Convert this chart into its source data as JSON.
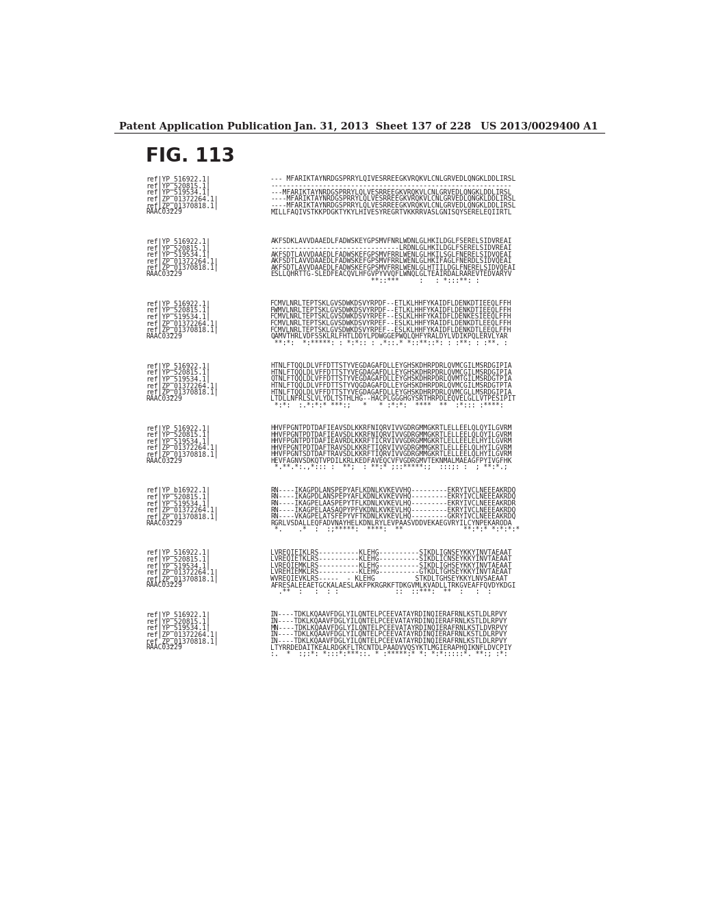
{
  "header_left": "Patent Application Publication",
  "header_middle": "Jan. 31, 2013  Sheet 137 of 228",
  "header_right": "US 2013/0029400 A1",
  "fig_label": "FIG. 113",
  "background_color": "#ffffff",
  "text_color": "#231f20",
  "blocks": [
    {
      "lines": [
        [
          "ref|YP_516922.1|",
          "--- MFARIKTAYNRDGSPRRYLQIVESRREEGKVRQKVLCNLGRVEDLQNGKLDDLIRSL"
        ],
        [
          "ref|YP_520815.1|",
          "------------------------------------------------------------"
        ],
        [
          "ref|YP_519534.1|",
          "---MFARIKTAYNRDGSPRRYLQLVESRREEGKVRQKVLCNLGRVEDLQNGKLDDLIRSL"
        ],
        [
          "ref|ZP_01372264.1|",
          "----MFARIKTAYNRDGSPRRYLQLVESRREEGKVRQKVLCNLGRVEDLQNGKLDDLIRSL"
        ],
        [
          "ref|ZP_01370818.1|",
          "----MFARIKTAYNRDGSPRRYLQLVESRREEGKVRQKVLCNLGRVEDLQNGKLDDLIRSL"
        ],
        [
          "RAAC03229",
          "MILLFAQIVSTKKPDGKTYKYLHIVESYREGRTVKKRRVASLGNISQYSERELEQIIRTL"
        ]
      ]
    },
    {
      "lines": [
        [
          "ref|YP_516922.1|",
          "AKFSDKLAVVDAAEDLFADWSKEYGPSMVFNRLWDNLGLHKILDGLFSERELSIDVREAI"
        ],
        [
          "ref|YP_520815.1|",
          "--------------------------------LRDNLGLHKILDGLFSERELSIDVREAI"
        ],
        [
          "ref|YP_519534.1|",
          "AKFSDTLAVVDAAEDLFADWSKEFGPSMVFRRLWENLGLHKILSGLFNERELSIDVQEAI"
        ],
        [
          "ref|ZP_01372264.1|",
          "AKFSDTLAVVDAAEDLFADWSKEFGPSMVFRRLWENLGLHKIFAGLFNERDLSIDVQEAI"
        ],
        [
          "ref|ZP_01370818.1|",
          "AKFSDTLAVVDAAEDLFADWSKEFGPSMVFRRLWENLGLHTIILDGLFNERELSIDVQEAI"
        ],
        [
          "RAAC03229",
          "ESLLQHRTTG-SLEDFEACQVLHFGVPYVVQFLWNQLGLTEAIRDALRAREVTEDVARYV"
        ],
        [
          "",
          "                         **::***     :   : *:::**: :"
        ]
      ]
    },
    {
      "lines": [
        [
          "ref|YP_516922.1|",
          "FCMVLNRLTEPTSKLGVSDWKDSVYRPDF--ETLKLHHFYKAIDFLDENKDTIEEQLFFH"
        ],
        [
          "ref|YP_520815.1|",
          "FWMVLNRLTEPTSKLGVSDWKDSVYRPDF--ETLKLHHFYKAIDFLDENKDTIEEQLFFH"
        ],
        [
          "ref|YP_519534.1|",
          "FCMVLNRLTEPTSKLGVSDWKDSVYRPEF--ESLKLHHFYKAIDFLDENKESIEEQLFFH"
        ],
        [
          "ref|ZP_01372264.1|",
          "FCMVLNRLTEPTSKLGVSDWKDSVYRPEF--ESLKLHHFYRAIDFLDENKDTLEEQLFFH"
        ],
        [
          "ref|ZP_01370818.1|",
          "FCMVLNRLTEPTSKLGVSDWKDSVYRPEF--ESLKLHHFYKAIDFLDENKDTLEEQLFFH"
        ],
        [
          "RAAC03229",
          "QAMVTHRLVDFSSKLRLFHTLDDYLPDWGGEPWQLQHFYRALDYLVDIKPQLERVLYAR"
        ],
        [
          "",
          " **:*:  *:*****: : *:*:: : .*::.* *::**::*: : :**: : :**. :"
        ]
      ]
    },
    {
      "lines": [
        [
          "ref|YP_516922.1|",
          "HTNLFTQQLDLVFFDTTSTYVEGDAGAFDLLEYGHSKDHRPDRLQVMCGILMSRDGIPIA"
        ],
        [
          "ref|YP_520815.1|",
          "HTNLFTQQLDLVFFDTTSTYVEGDAGAFDLLEYGHSKDHRPDRLQVMCGILMSRDGIPIA"
        ],
        [
          "ref|YP_519534.1|",
          "QTNLFTQQLDLVFFDTTSTYVEGDAGAFDLLEYGHSKDHRPDRLQVMTGILMSRDGTPIA"
        ],
        [
          "ref|ZP_01372264.1|",
          "HTNLFTQQLDLVFFDTTSTYVQGDAGAFDLLEYGHSKDHRPDRLQVMCGILMSRDGTPTA"
        ],
        [
          "ref|ZP_01370818.1|",
          "HTNLFTQQLDLVFFDTTSTYVEGDAGAFDLLEYGHSKDHRPDRLQVMCGLLMSRDGIPIA"
        ],
        [
          "RAAC03229",
          "LTDLLNFRLSLVLYDLTSTHLHG--HACPLGGGHGYSRTHRPDLEQVELGLLVTPESIPIT"
        ],
        [
          "",
          " *:*:  :.*:*:* ***:;   *   * :*:*:  ****  **  :*::: :****:"
        ]
      ]
    },
    {
      "lines": [
        [
          "ref|YP_516922.1|",
          "HHVFPGNTPDTDAFIEAVSDLKKRFNIQRVIVVGDRGMMGKRTLELLEELQLQYILGVRM"
        ],
        [
          "ref|YP_520815.1|",
          "HHVFPGNTPDTDAFIEAVSDLKKRFNIQRVIVVGDRGMMGKRTLELLEELQLQYILGVRM"
        ],
        [
          "ref|YP_519534.1|",
          "HHVFPGNTPDTDAFIEAVRDLKKRFTICRVIVVGDRGMMGKRTLELLEELELHYILGVRM"
        ],
        [
          "ref|ZP_01372264.1|",
          "HHVFPGNTPDTDAFTRAVSDLKKRFTIQRVIVVGDRGMMGKRTLELLEELQLHYILGVRM"
        ],
        [
          "ref|ZP_01370818.1|",
          "HHVFPGNTSDTDAFTRAVSDLKKRFTIQRVIVVGDRGMMGKRTLELLEELQLHYILGVRM"
        ],
        [
          "RAAC03229",
          "HEVFAGNVSDKQTVPDILKRLKEDFAVEQCVFVGDRGMVTEKNMALMAEAGFPYIVGFHK"
        ],
        [
          "",
          " *.**.*:.,*::: :  **;  : **:* ;::*****:;  :::;: :  ; **:*.;"
        ]
      ]
    },
    {
      "lines": [
        [
          "ref|YP_b16922.1|",
          "RN----IKAGPDLANSPEPYAFLKDNLKVKEVVHQ---------EKRYIVCLNEEEAKRDQ"
        ],
        [
          "ref|YP_520815.1|",
          "RN----IKAGPDLANSPEPYAFLKDNLKVKEVVHQ---------EKRYIVCLNEEEAKRDQ"
        ],
        [
          "ref|YP_519534.1|",
          "RN----IKAGPELAASPEPYTFLKDNLKVKEVLHQ---------EKRYIVCLNEEEAKRDR"
        ],
        [
          "ref|ZP_01372264.1|",
          "RN----IKAGPELAASAQPYPFVKDNLKVKEVLHQ---------EKRYIVCLNEEEAKRDQ"
        ],
        [
          "ref|ZP_01370818.1|",
          "RN----VKAGPELATSFEPYVFTKDNLKVKEVLHQ---------GKRYIVCLNEEEAKRDQ"
        ],
        [
          "RAAC03229",
          "RGRLVSDALLEQFADVNAYHELKDNLRYLEVPAASVDDVEKAEGVRYILCYNPEKARODA"
        ],
        [
          "",
          " *.    .*  :  :;*****:  ****:  **               **:*:* *:*:*:*"
        ]
      ]
    },
    {
      "lines": [
        [
          "ref|YP_516922.1|",
          "LVREQIEIKLRS----------KLEHG----------SIKDLIGNSEYKKYINVTAEAAT"
        ],
        [
          "ref|YP_520815.1|",
          "LVREQIETKLRS----------KLEHG----------SIKDLICNSEYKKYINVTAEAAT"
        ],
        [
          "ref|YP_519534.1|",
          "LVREQIEMKLRS----------KLEHG----------SIKDLIGHSEYKKYINVTAEAAT"
        ],
        [
          "ref|ZP_01372264.1|",
          "LVREHIEMKLRS----------KLEHG----------GTKDLTGHSEYKKYINVTAEAAT"
        ],
        [
          "ref|ZP_01370818.1|",
          "WVREQIEVKLRS-----  - KLEHG          STKDLTGHSEYKKYLNVSAEAAT"
        ],
        [
          "RAAC03229",
          "AFRESALEEAETGCKALAESLAKFPKRGRKFTDKGVMLKVADLLTRKGVEAFFQVDYKDGI"
        ],
        [
          "",
          "  .**  :   :  : :              ::  ::***:  **  :   :  :"
        ]
      ]
    },
    {
      "lines": [
        [
          "ref|YP_516922.1|",
          "IN----TDKLKQAAVFDGLYILQNTELPCEEVATAYRDINQIERAFRNLKSTLDLRPVY"
        ],
        [
          "ref|YP_520815.1|",
          "IN----TDKLKQAAVFDGLYILQNTELPCEEVATAYRDINQIERAFRNLKSTLDLRPVY"
        ],
        [
          "ref|YP_519534.1|",
          "MN----TDKLKQAAVFDGLYILQNTELPCEEVATAYRDINQIERAFRNLKSTLDVRPVY"
        ],
        [
          "ref|ZP_01372264.1|",
          "IN----TDKLKQAAVFDGLYILQNTELPCEEVATAYRDINQIERAFRNLKSTLDLRPVY"
        ],
        [
          "ref ZP_01370818.1|",
          "IN----TDKLKQAAVFDGLYILQNTELPCEEVATAYRDINQIERAFRNLKSTLDLRPVY"
        ],
        [
          "RAAC03229",
          "LTYRRDEDAITKEALRDGKFLTRCNTDLPAADVVQSYKTLMGIERAPHQIKNFLDVCPIY"
        ],
        [
          "",
          ":.  *  :;:*: *:::*:***::. * :*****:* *: *:*:::::*. **:; :*:"
        ]
      ]
    }
  ]
}
